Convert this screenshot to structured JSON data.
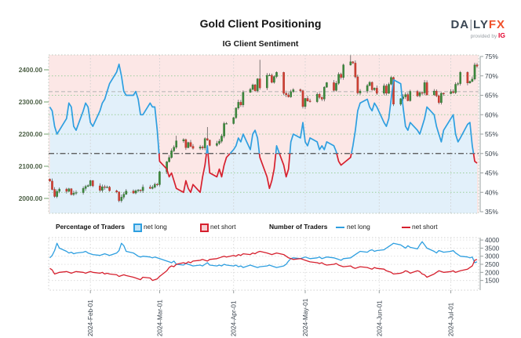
{
  "header": {
    "title": "Gold Client Positioning",
    "subtitle": "IG Client Sentiment"
  },
  "logo": {
    "brand_a": "DA",
    "brand_bar": "|",
    "brand_b": "LY",
    "brand_fx": "FX",
    "tagline": "provided by ",
    "tagline_brand": "IG",
    "brand_color": "#3a4653",
    "fx_color": "#f0502a",
    "ig_color": "#e4002b"
  },
  "legend": {
    "group1_label": "Percentage of Traders",
    "g1_long": "net long",
    "g1_short": "net short",
    "group2_label": "Number of Traders",
    "g2_long": "net long",
    "g2_short": "net short"
  },
  "colors": {
    "long_blue": "#2e9fe0",
    "short_red": "#d6202e",
    "area_above_pink": "#fce7e6",
    "area_below_blue": "#e2f0fa",
    "candle_up": "#3d8a3d",
    "candle_up_edge": "#2f6b2f",
    "candle_down": "#cf4033",
    "candle_down_edge": "#a92f26",
    "wick": "#4a4a4a",
    "grid_green": "#9ccf9c",
    "grid_gray": "#cfcfcf",
    "midline_gray": "#4d4d4d",
    "price_ref_gray": "#b3b3b3",
    "price_axis_text": "#4e6147",
    "pct_axis_text": "#39434d",
    "date_text": "#39434d",
    "axis_tick_green": "#74a06e",
    "axis_line_gray": "#9aa0a0"
  },
  "chart_data": {
    "main": {
      "type": "candlestick+line",
      "description": "Gold daily candles (left price axis) overlaid with IG client sentiment net-long % line (right axis); line is blue when >=50% net long, red when <50%; area below line shaded light blue, above light pink",
      "start_date": "2024-01-15",
      "end_date": "2024-07-12",
      "frequency": "weekdays",
      "price_axis": {
        "side": "left",
        "range": [
          1954,
          2446
        ],
        "ticks": [
          {
            "v": 2000,
            "label": "2000.00"
          },
          {
            "v": 2100,
            "label": "2100.00"
          },
          {
            "v": 2200,
            "label": "2200.00"
          },
          {
            "v": 2300,
            "label": "2300.00"
          },
          {
            "v": 2400,
            "label": "2400.00"
          }
        ]
      },
      "pct_axis": {
        "side": "right",
        "range": [
          35,
          75
        ],
        "ticks": [
          {
            "v": 35,
            "label": "35%"
          },
          {
            "v": 40,
            "label": "40%"
          },
          {
            "v": 45,
            "label": "45%"
          },
          {
            "v": 50,
            "label": "50%"
          },
          {
            "v": 55,
            "label": "55%"
          },
          {
            "v": 60,
            "label": "60%"
          },
          {
            "v": 65,
            "label": "65%"
          },
          {
            "v": 70,
            "label": "70%"
          },
          {
            "v": 75,
            "label": "75%"
          }
        ]
      },
      "reference_lines": {
        "sentiment_midline_pct": 50,
        "price_level": 2332
      },
      "gold_close": [
        2054,
        2028,
        2006,
        2022,
        2029,
        2022,
        2030,
        2012,
        2016,
        2018,
        2031,
        2037,
        2040,
        2055,
        2039,
        2025,
        2036,
        2034,
        2035,
        2024,
        2020,
        1993,
        2004,
        2013,
        2023,
        2017,
        2024,
        2026,
        2024,
        2035,
        2031,
        2035,
        2044,
        2043,
        2083,
        2114,
        2127,
        2148,
        2159,
        2179,
        2183,
        2158,
        2174,
        2162,
        2156,
        2160,
        2157,
        2186,
        2181,
        2165,
        2171,
        2178,
        2194,
        2233,
        2233,
        2251,
        2281,
        2299,
        2291,
        2330,
        2339,
        2353,
        2335,
        2372,
        2344,
        2383,
        2383,
        2361,
        2379,
        2392,
        2327,
        2322,
        2316,
        2332,
        2338,
        2335,
        2286,
        2311,
        2303,
        2301,
        2324,
        2314,
        2309,
        2346,
        2360,
        2336,
        2358,
        2386,
        2376,
        2415,
        2425,
        2421,
        2378,
        2328,
        2334,
        2351,
        2361,
        2338,
        2343,
        2327,
        2350,
        2327,
        2355,
        2376,
        2293,
        2310,
        2316,
        2323,
        2304,
        2333,
        2319,
        2329,
        2328,
        2360,
        2322,
        2334,
        2319,
        2298,
        2327,
        2326,
        2332,
        2329,
        2355,
        2357,
        2392,
        2359,
        2364,
        2371,
        2415,
        2411
      ],
      "candle_extremes": {
        "2024-02-13": {
          "low": 1988
        },
        "2024-03-08": {
          "high": 2195
        },
        "2024-03-21": {
          "high": 2222
        },
        "2024-04-12": {
          "high": 2431
        },
        "2024-05-20": {
          "high": 2450
        },
        "2024-06-07": {
          "low": 2287
        }
      },
      "net_long_pct": [
        62,
        61,
        57,
        55,
        56,
        59,
        63,
        62,
        57,
        56,
        61,
        63,
        62,
        58,
        57,
        61,
        63,
        64,
        66,
        68,
        71,
        73,
        70,
        66,
        65,
        65,
        66,
        64,
        60,
        60,
        63,
        62,
        62,
        56,
        48,
        46,
        44,
        45,
        43,
        41,
        40,
        43,
        41,
        40,
        42,
        40,
        44,
        47,
        52,
        45,
        44,
        46,
        44,
        47,
        49,
        51,
        52,
        54,
        53,
        55,
        51,
        55,
        56,
        54,
        49,
        44,
        41,
        43,
        46,
        52,
        47,
        44,
        46,
        53,
        55,
        54,
        58,
        53,
        52,
        54,
        53,
        51,
        52,
        51,
        53,
        52,
        50.5,
        48,
        47,
        47.5,
        49,
        52,
        56,
        61,
        63,
        64,
        62,
        61,
        63,
        62,
        58,
        57,
        59,
        64,
        69,
        68,
        62,
        57,
        56,
        58,
        56,
        55,
        57,
        59,
        62,
        60,
        57,
        55,
        53,
        56,
        59,
        60,
        55,
        53,
        54,
        57.5,
        58,
        52,
        48,
        47.5
      ]
    },
    "traders": {
      "type": "line",
      "description": "Number of traders net long (blue) and net short (red), same weekday dates as main chart",
      "y_axis": {
        "side": "right",
        "range": [
          900,
          4150
        ],
        "ticks": [
          1500,
          2000,
          2500,
          3000,
          3500,
          4000
        ]
      },
      "x_axis": {
        "ticks": [
          {
            "date": "2024-02-01",
            "label": "2024-Feb-01"
          },
          {
            "date": "2024-03-01",
            "label": "2024-Mar-01"
          },
          {
            "date": "2024-04-01",
            "label": "2024-Apr-01"
          },
          {
            "date": "2024-05-01",
            "label": "2024-May-01"
          },
          {
            "date": "2024-06-01",
            "label": "2024-Jun-01"
          },
          {
            "date": "2024-07-01",
            "label": "2024-Jul-01"
          }
        ]
      },
      "series": [
        {
          "name": "net long",
          "color_key": "long_blue",
          "values": [
            2900,
            3050,
            3350,
            3800,
            3500,
            3300,
            3200,
            3250,
            3150,
            3200,
            3250,
            3300,
            3200,
            3150,
            3100,
            3050,
            3100,
            3150,
            3100,
            3050,
            3200,
            3350,
            3800,
            3650,
            3300,
            3200,
            3100,
            3000,
            2950,
            3000,
            2950,
            2900,
            2950,
            2900,
            2850,
            2700,
            2650,
            2600,
            2700,
            2500,
            2450,
            2550,
            2500,
            2450,
            2400,
            2450,
            2400,
            2500,
            2600,
            2450,
            2400,
            2450,
            2400,
            2500,
            2450,
            2400,
            2450,
            2350,
            2400,
            2300,
            2450,
            2400,
            2350,
            2300,
            2350,
            2400,
            2450,
            2400,
            2350,
            2300,
            2400,
            2500,
            2700,
            2850,
            2900,
            2850,
            2900,
            2950,
            2900,
            2850,
            2900,
            2950,
            2850,
            2900,
            2950,
            2900,
            2850,
            2800,
            2750,
            2850,
            2900,
            3000,
            3100,
            3200,
            3300,
            3250,
            3350,
            3400,
            3300,
            3350,
            3400,
            3500,
            3600,
            3700,
            3800,
            3700,
            3600,
            3500,
            3650,
            3550,
            3450,
            3700,
            3900,
            3700,
            3500,
            3300,
            3200,
            3350,
            3300,
            3250,
            3300,
            3350,
            3200,
            3100,
            3000,
            2950,
            2900,
            2950,
            2600,
            2650
          ]
        },
        {
          "name": "net short",
          "color_key": "short_red",
          "values": [
            2250,
            2150,
            1900,
            1950,
            2000,
            2050,
            2000,
            1950,
            2000,
            2050,
            2000,
            1950,
            2000,
            2050,
            2000,
            1950,
            2000,
            1900,
            1950,
            1900,
            1850,
            1750,
            1800,
            1850,
            1800,
            1700,
            1650,
            1600,
            1550,
            1700,
            1650,
            1500,
            1550,
            1600,
            1750,
            2100,
            2300,
            2400,
            2350,
            2500,
            2600,
            2550,
            2650,
            2600,
            2700,
            2750,
            2800,
            2750,
            2700,
            2800,
            2850,
            2900,
            2950,
            3000,
            2950,
            3050,
            3000,
            3100,
            3050,
            3150,
            3100,
            3200,
            3150,
            3250,
            3300,
            3200,
            3150,
            3100,
            3150,
            3200,
            3100,
            3000,
            2900,
            2850,
            2800,
            2850,
            2800,
            2750,
            2700,
            2650,
            2600,
            2550,
            2600,
            2500,
            2450,
            2500,
            2550,
            2450,
            2400,
            2350,
            2400,
            2300,
            2250,
            2300,
            2350,
            2300,
            2250,
            2200,
            2300,
            2250,
            2200,
            2100,
            2050,
            2000,
            1900,
            1950,
            2000,
            2100,
            2050,
            1950,
            2100,
            2050,
            1900,
            1850,
            1700,
            1900,
            2000,
            2100,
            2050,
            2000,
            2050,
            2100,
            2000,
            2050,
            2100,
            2200,
            2300,
            2400,
            2750,
            2800
          ]
        }
      ]
    }
  }
}
